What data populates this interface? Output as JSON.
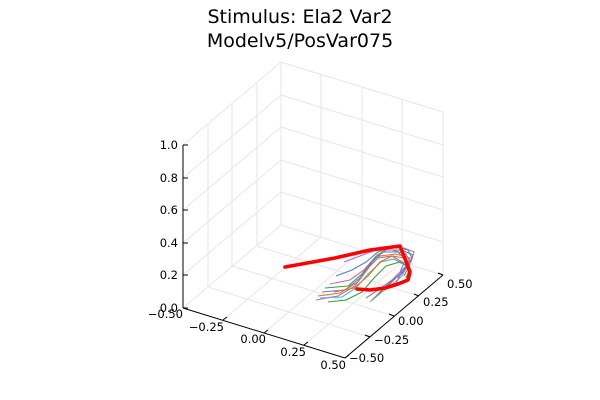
{
  "chart_data": {
    "type": "line",
    "plot_kind": "3d-line",
    "title_lines": [
      "Stimulus: Ela2 Var2",
      "Modelv5/PosVar075"
    ],
    "x_ticks": [
      "−0.50",
      "−0.25",
      "0.00",
      "0.25",
      "0.50"
    ],
    "x_range": [
      -0.5,
      0.5
    ],
    "y_ticks": [
      "0.50",
      "0.25",
      "0.00",
      "−0.25",
      "−0.50"
    ],
    "y_range": [
      -0.5,
      0.5
    ],
    "z_ticks": [
      "0.0",
      "0.2",
      "0.4",
      "0.6",
      "0.8",
      "1.0"
    ],
    "z_range": [
      0.0,
      1.0
    ],
    "grid": true,
    "legend": "none",
    "colors": {
      "stimulus": "#ff0000",
      "trajectories": [
        "#4f7fd0",
        "#e0701e",
        "#3a9f3a",
        "#9d6fd6",
        "#c66b9c",
        "#57b0b8"
      ]
    }
  }
}
